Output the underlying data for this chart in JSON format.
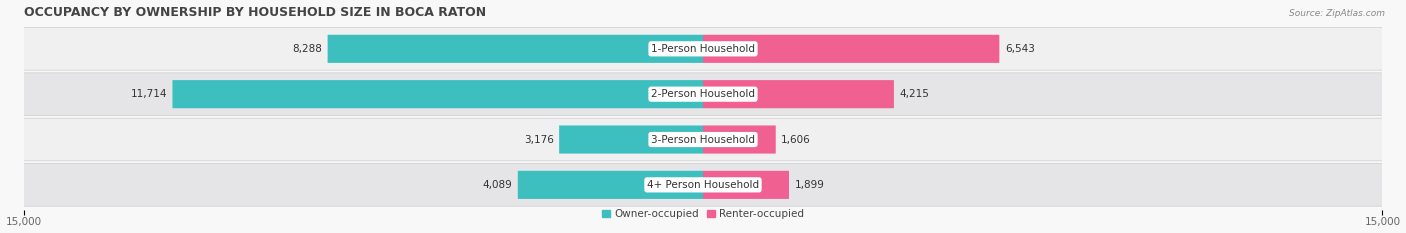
{
  "title": "OCCUPANCY BY OWNERSHIP BY HOUSEHOLD SIZE IN BOCA RATON",
  "source": "Source: ZipAtlas.com",
  "categories": [
    "1-Person Household",
    "2-Person Household",
    "3-Person Household",
    "4+ Person Household"
  ],
  "owner_values": [
    8288,
    11714,
    3176,
    4089
  ],
  "renter_values": [
    6543,
    4215,
    1606,
    1899
  ],
  "axis_max": 15000,
  "owner_color": "#3DBFBF",
  "renter_color": "#F06090",
  "owner_color_light": "#A8DEDE",
  "renter_color_light": "#F8B8CC",
  "label_bg_color": "#FFFFFF",
  "row_bg_color_odd": "#F0F0F0",
  "row_bg_color_even": "#E5E5E8",
  "legend_owner": "Owner-occupied",
  "legend_renter": "Renter-occupied",
  "title_fontsize": 9,
  "label_fontsize": 7.5,
  "tick_fontsize": 7.5,
  "value_fontsize": 7.5,
  "figsize": [
    14.06,
    2.33
  ],
  "dpi": 100
}
